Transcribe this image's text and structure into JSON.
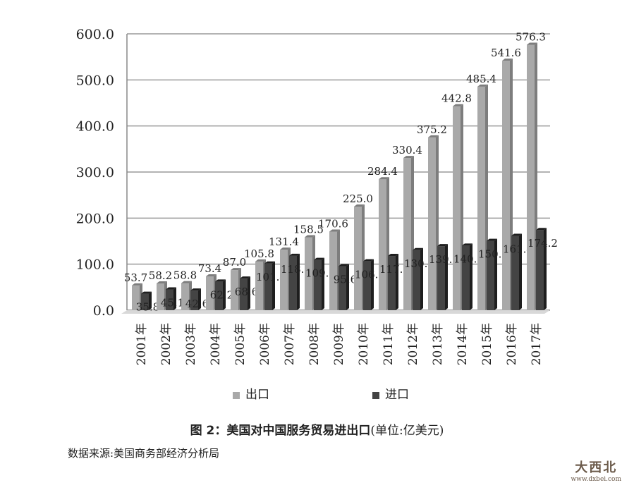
{
  "chart_data": {
    "type": "bar",
    "categories": [
      "2001年",
      "2002年",
      "2003年",
      "2004年",
      "2005年",
      "2006年",
      "2007年",
      "2008年",
      "2009年",
      "2010年",
      "2011年",
      "2012年",
      "2013年",
      "2014年",
      "2015年",
      "2016年",
      "2017年"
    ],
    "series": [
      {
        "name": "出口",
        "color": "#a9a9a9",
        "values": [
          53.7,
          58.2,
          58.8,
          73.4,
          87.0,
          105.8,
          131.4,
          158.5,
          170.6,
          225.0,
          284.4,
          330.4,
          375.2,
          442.8,
          485.4,
          541.6,
          576.3
        ]
      },
      {
        "name": "进口",
        "color": "#444444",
        "values": [
          35.8,
          45.1,
          42.6,
          62.2,
          68.6,
          101.4,
          118.0,
          109.2,
          95.6,
          106.1,
          117.8,
          130.4,
          139.1,
          140.2,
          150.6,
          161.4,
          174.2
        ]
      }
    ],
    "ylim": [
      0,
      600
    ],
    "yticks": [
      "0.0",
      "100.0",
      "200.0",
      "300.0",
      "400.0",
      "500.0",
      "600.0"
    ],
    "grid": true,
    "legend_position": "bottom",
    "title": "图 2：美国对中国服务贸易进出口(单位:亿美元)"
  },
  "caption": {
    "bold": "图 2：美国对中国服务贸易进出口",
    "unit": "(单位:亿美元)"
  },
  "source": "数据来源:美国商务部经济分析局",
  "watermark": {
    "name": "大西北",
    "url": "www.dxbei.com"
  }
}
